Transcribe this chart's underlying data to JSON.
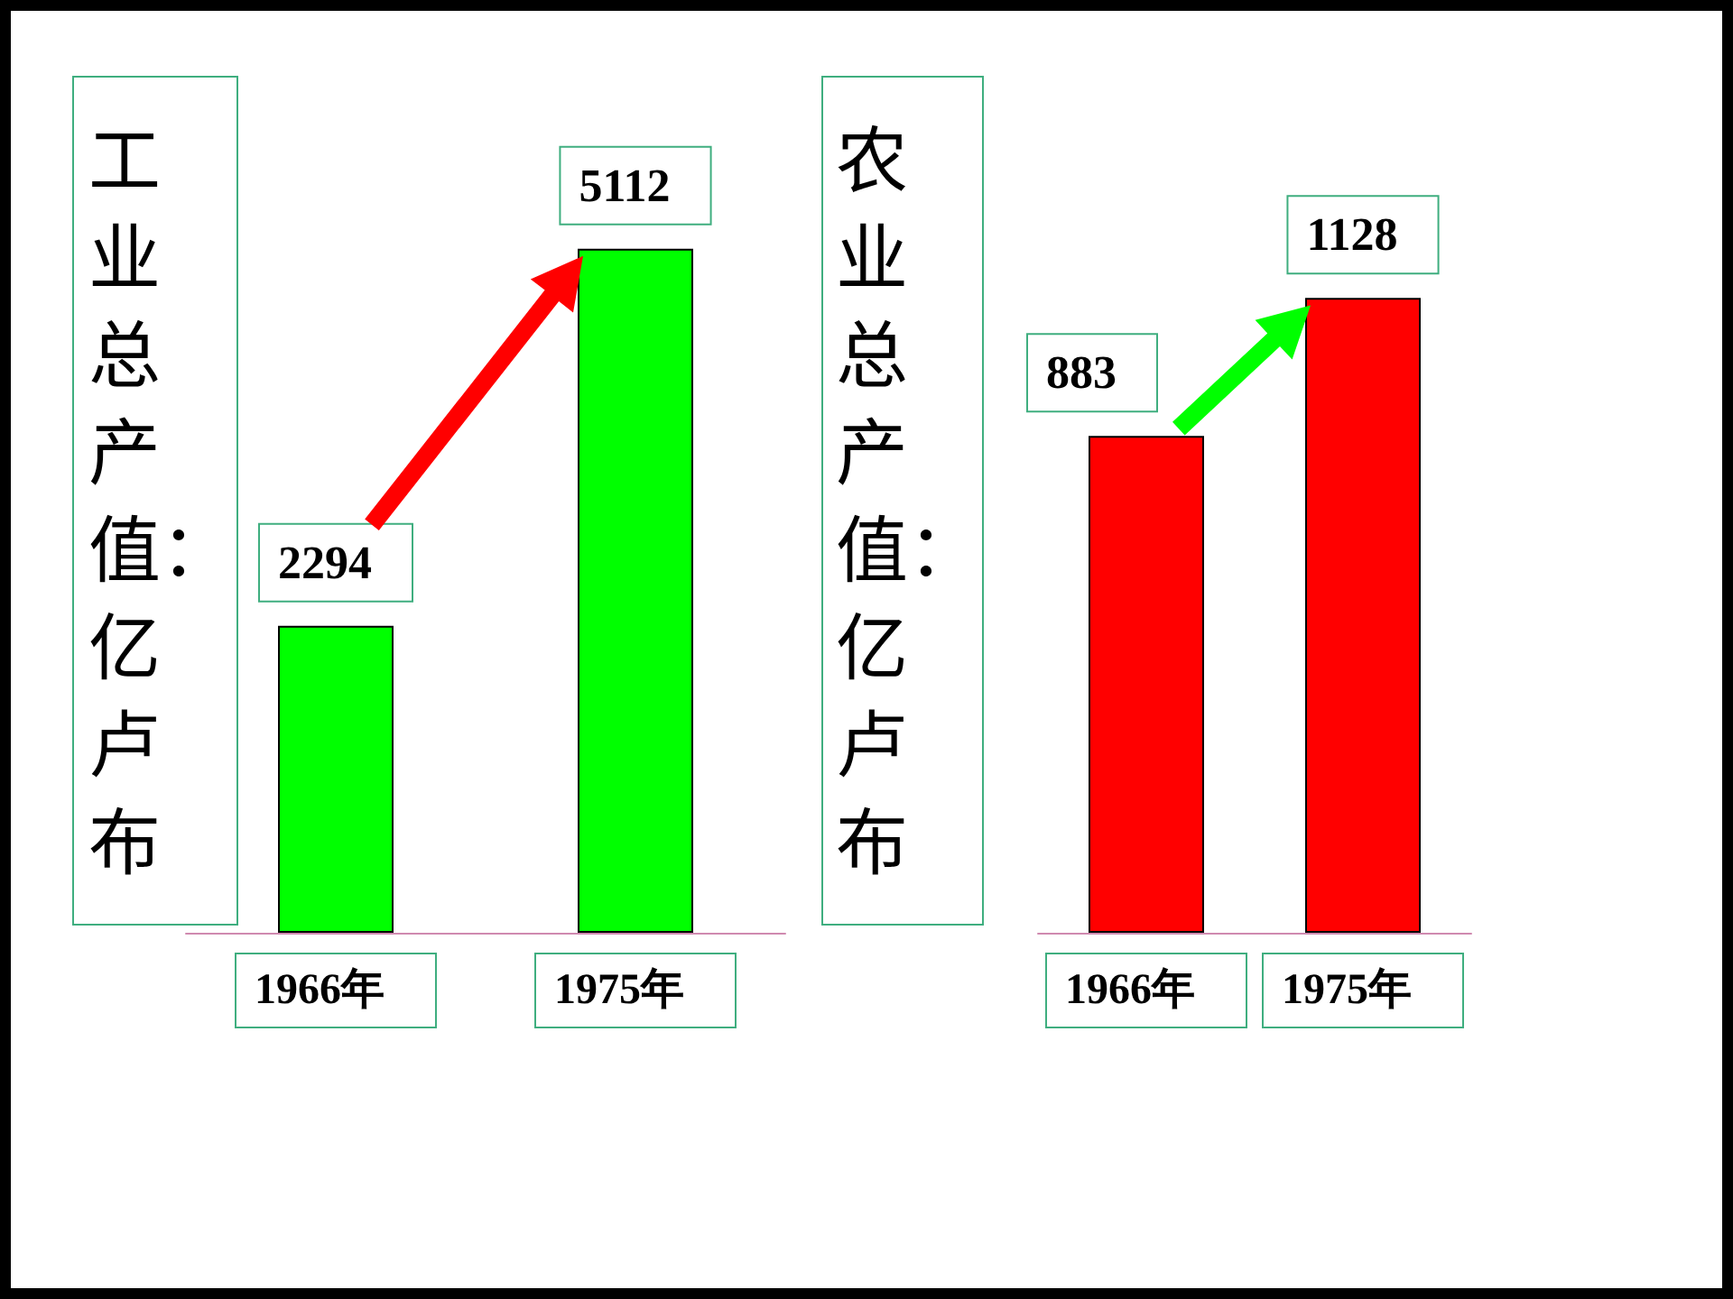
{
  "chart_data": [
    {
      "type": "bar",
      "ylabel": "工业总产值：亿卢布",
      "categories": [
        "1966年",
        "1975年"
      ],
      "values": [
        2294,
        5112
      ],
      "color": "#00ff00",
      "data_labels": true
    },
    {
      "type": "bar",
      "ylabel": "农业总产值：亿卢布",
      "categories": [
        "1966年",
        "1975年"
      ],
      "values": [
        883,
        1128
      ],
      "color": "#ff0000",
      "data_labels": true
    }
  ]
}
